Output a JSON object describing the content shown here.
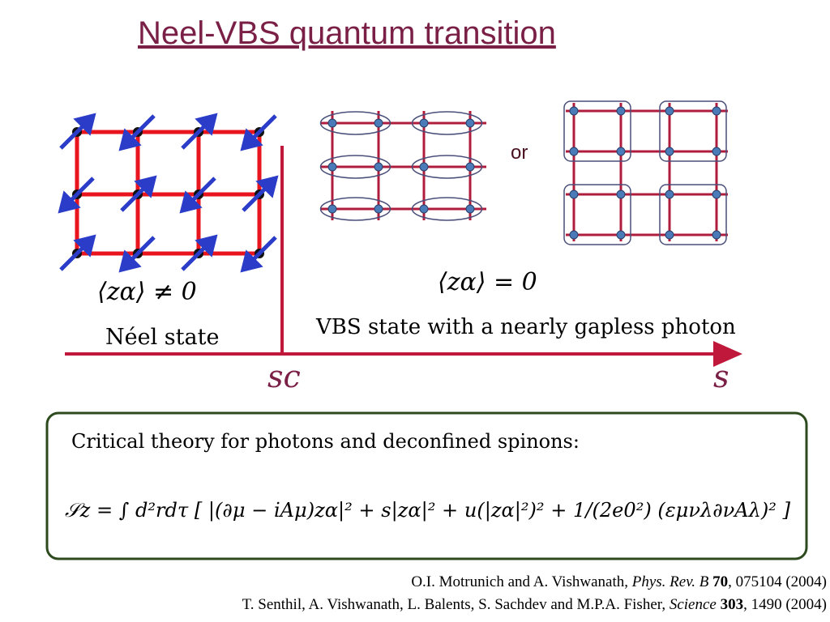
{
  "header": {
    "title": "Neel-VBS quantum transition"
  },
  "diagram": {
    "or_label": "or",
    "neel_order": "⟨zα⟩ ≠ 0",
    "neel_label": "Néel state",
    "vbs_order": "⟨zα⟩ = 0",
    "vbs_label": "VBS state with a nearly gapless photon",
    "critical_point": "sc",
    "axis_label": "s"
  },
  "theory": {
    "heading": "Critical theory for photons and deconfined spinons:",
    "formula": "𝒮z = ∫ d²rdτ [ |(∂μ − iAμ)zα|² + s|zα|² + u(|zα|²)² + 1/(2e0²) (εμνλ∂νAλ)² ]"
  },
  "references": [
    [
      "O.I. Motrunich and A. Vishwanath, ",
      "Phys. Rev. B",
      " ",
      "70",
      ", 075104 (2004)"
    ],
    [
      "T. Senthil, A. Vishwanath, L. Balents, S. Sachdev and M.P.A. Fisher, ",
      "Science",
      " ",
      "303",
      ", 1490 (2004)"
    ]
  ]
}
